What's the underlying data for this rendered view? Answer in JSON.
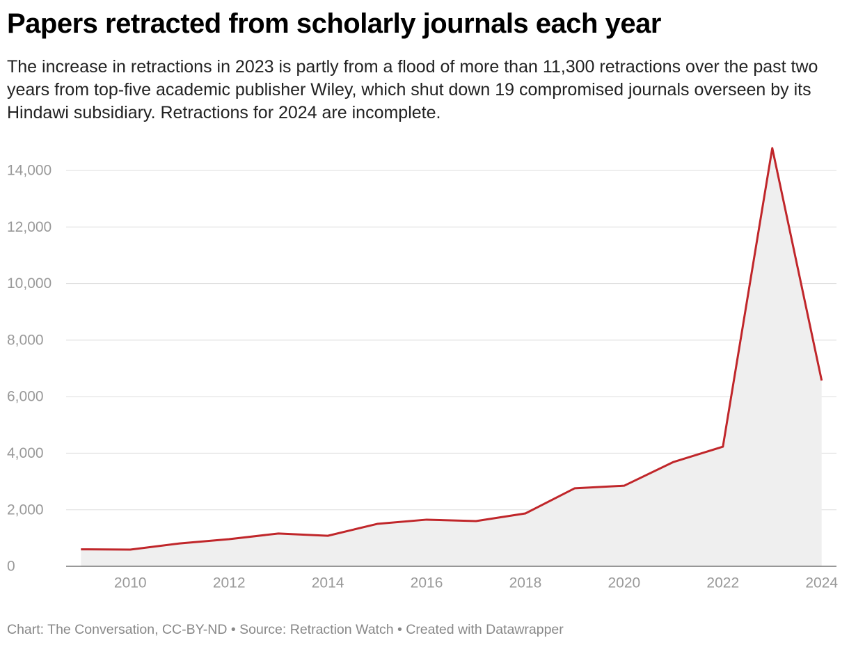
{
  "chart_data": {
    "type": "area-line",
    "title": "Papers retracted from scholarly journals each year",
    "subtitle": "The increase in retractions in 2023 is partly from a flood of more than 11,300 retractions over the past two years from top-five academic publisher Wiley, which shut down 19 compromised journals overseen by its Hindawi subsidiary. Retractions for 2024 are incomplete.",
    "footer": "Chart: The Conversation, CC-BY-ND • Source: Retraction Watch • Created with Datawrapper",
    "x": [
      2009,
      2010,
      2011,
      2012,
      2013,
      2014,
      2015,
      2016,
      2017,
      2018,
      2019,
      2020,
      2021,
      2022,
      2023,
      2024
    ],
    "values": [
      600,
      590,
      810,
      960,
      1160,
      1080,
      1500,
      1650,
      1600,
      1870,
      2760,
      2850,
      3690,
      4230,
      14790,
      6570
    ],
    "color": "#c0262a",
    "fill_color": "#efefef",
    "xlim": [
      2008.7,
      2024.3
    ],
    "xticks": [
      2010,
      2012,
      2014,
      2016,
      2018,
      2020,
      2022,
      2024
    ],
    "ylim": [
      0,
      14000
    ],
    "yticks": [
      0,
      {
        "value": 2000,
        "label": "2,000"
      },
      {
        "value": 4000,
        "label": "4,000"
      },
      {
        "value": 6000,
        "label": "6,000"
      },
      {
        "value": 8000,
        "label": "8,000"
      },
      {
        "value": 10000,
        "label": "10,000"
      },
      {
        "value": 12000,
        "label": "12,000"
      },
      {
        "value": 14000,
        "label": "14,000"
      }
    ],
    "grid": true
  }
}
